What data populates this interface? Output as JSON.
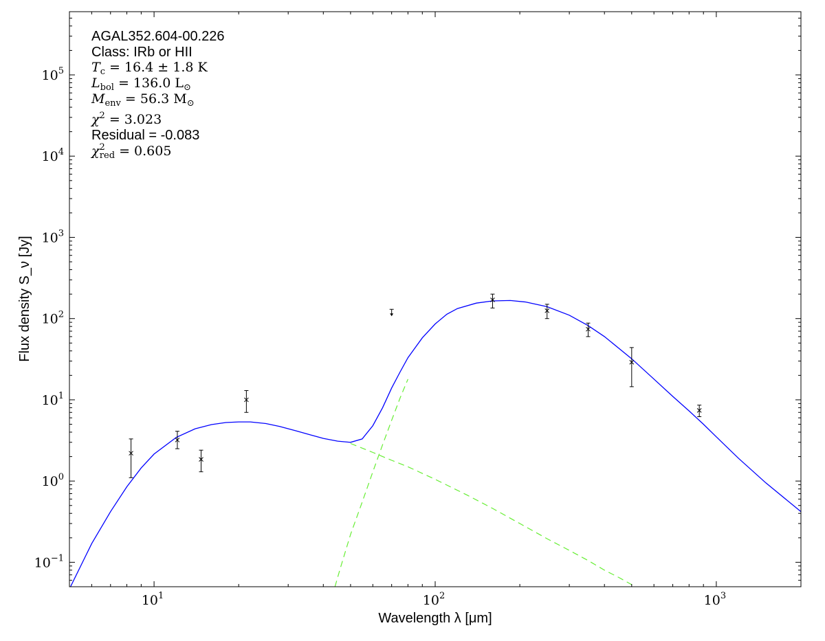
{
  "chart_data": {
    "type": "scatter",
    "title": "",
    "xlabel": "Wavelength λ [μm]",
    "ylabel": "Flux density S_ν [Jy]",
    "xscale": "log",
    "yscale": "log",
    "xlim": [
      5,
      2000
    ],
    "ylim": [
      0.05,
      600000
    ],
    "grid": false,
    "x_ticks": [
      {
        "value": 10,
        "base": "10",
        "exp": "1"
      },
      {
        "value": 100,
        "base": "10",
        "exp": "2"
      },
      {
        "value": 1000,
        "base": "10",
        "exp": "3"
      }
    ],
    "y_ticks": [
      {
        "value": 0.1,
        "base": "10",
        "exp": "−1"
      },
      {
        "value": 1,
        "base": "10",
        "exp": "0"
      },
      {
        "value": 10,
        "base": "10",
        "exp": "1"
      },
      {
        "value": 100,
        "base": "10",
        "exp": "2"
      },
      {
        "value": 1000,
        "base": "10",
        "exp": "3"
      },
      {
        "value": 10000,
        "base": "10",
        "exp": "4"
      },
      {
        "value": 100000,
        "base": "10",
        "exp": "5"
      }
    ],
    "annotations": {
      "source": "AGAL352.604-00.226",
      "class": "Class: IRb or HII",
      "tc": {
        "sym": "T",
        "sub": "c",
        "rest": " = 16.4 ± 1.8 K"
      },
      "lbol": {
        "sym": "L",
        "sub": "bol",
        "rest": " = 136.0 L",
        "sub2": "⊙"
      },
      "menv": {
        "sym": "M",
        "sub": "env",
        "rest": " = 56.3 M",
        "sub2": "⊙"
      },
      "chi2": {
        "sym": "χ",
        "sup": "2",
        "rest": " = 3.023"
      },
      "residual": "Residual = -0.083",
      "chi2red": {
        "sym": "χ",
        "sup": "2",
        "sub": "red",
        "rest": " = 0.605"
      }
    },
    "series": [
      {
        "kind": "measurements",
        "points": [
          {
            "x": 8.28,
            "y": 2.2,
            "ylo": 1.1,
            "yhi": 3.3
          },
          {
            "x": 12.1,
            "y": 3.2,
            "ylo": 2.5,
            "yhi": 4.1
          },
          {
            "x": 14.7,
            "y": 1.85,
            "ylo": 1.3,
            "yhi": 2.4
          },
          {
            "x": 21.3,
            "y": 10.0,
            "ylo": 7.0,
            "yhi": 13.0
          },
          {
            "x": 160,
            "y": 170,
            "ylo": 135,
            "yhi": 200
          },
          {
            "x": 250,
            "y": 125,
            "ylo": 100,
            "yhi": 150
          },
          {
            "x": 350,
            "y": 74,
            "ylo": 60,
            "yhi": 88
          },
          {
            "x": 500,
            "y": 29,
            "ylo": 14.5,
            "yhi": 44
          },
          {
            "x": 870,
            "y": 7.4,
            "ylo": 6.2,
            "yhi": 8.6
          }
        ],
        "upper_limits": [
          {
            "x": 70,
            "y": 130
          }
        ],
        "color": "#000000"
      },
      {
        "kind": "total_fit",
        "color": "#0000ff",
        "x": [
          5,
          6,
          7,
          8,
          9,
          10,
          12,
          14,
          16,
          18,
          20,
          22,
          25,
          28,
          32,
          36,
          40,
          45,
          50,
          55,
          60,
          65,
          70,
          75,
          80,
          90,
          100,
          110,
          120,
          140,
          160,
          185,
          210,
          250,
          300,
          350,
          400,
          500,
          600,
          700,
          800,
          900,
          1000,
          1200,
          1500,
          2000
        ],
        "y": [
          0.047,
          0.17,
          0.42,
          0.85,
          1.45,
          2.15,
          3.45,
          4.4,
          4.95,
          5.25,
          5.35,
          5.35,
          5.1,
          4.7,
          4.15,
          3.7,
          3.35,
          3.1,
          3.0,
          3.3,
          4.8,
          8.0,
          14.0,
          22.0,
          33.0,
          58.0,
          86.0,
          113.0,
          133.0,
          155.0,
          165.0,
          167.0,
          160.0,
          140.0,
          110.0,
          82.0,
          60.0,
          32.0,
          18.0,
          11.0,
          7.3,
          5.0,
          3.5,
          1.9,
          0.95,
          0.42
        ]
      },
      {
        "kind": "warm_component",
        "color": "#66ee33",
        "x": [
          50,
          60,
          70,
          80,
          100,
          130,
          160,
          200,
          250,
          300,
          350,
          400,
          450,
          500
        ],
        "y": [
          2.9,
          2.25,
          1.8,
          1.5,
          1.05,
          0.67,
          0.46,
          0.3,
          0.195,
          0.14,
          0.105,
          0.08,
          0.065,
          0.053
        ]
      },
      {
        "kind": "cold_component",
        "color": "#66ee33",
        "x": [
          44,
          46,
          50,
          55,
          60,
          65,
          70,
          75,
          80
        ],
        "y": [
          0.05,
          0.085,
          0.22,
          0.55,
          1.3,
          2.8,
          5.6,
          10.5,
          18.0
        ]
      }
    ]
  }
}
